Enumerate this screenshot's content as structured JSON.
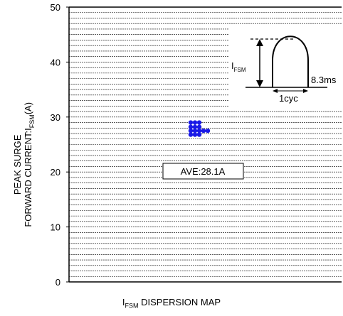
{
  "chart_data": {
    "type": "scatter",
    "ylabel_line1": "PEAK SURGE",
    "ylabel_line2_prefix": "FORWARD CURRENT:I",
    "ylabel_line2_sub": "FSM",
    "ylabel_line2_suffix": "(A)",
    "xcaption_prefix": "I",
    "xcaption_sub": "FSM",
    "xcaption_suffix": " DISPERSION MAP",
    "ylim": [
      0,
      50
    ],
    "yticks": [
      "0",
      "10",
      "20",
      "30",
      "40",
      "50"
    ],
    "hgrid_step": 1,
    "annotation": "AVE:28.1A",
    "marker_color": "#1a1ae6",
    "points": [
      {
        "x": 0,
        "y": 29
      },
      {
        "x": 1,
        "y": 29
      },
      {
        "x": 2,
        "y": 29
      },
      {
        "x": 0,
        "y": 28.2
      },
      {
        "x": 1,
        "y": 28.2
      },
      {
        "x": 2,
        "y": 28.2
      },
      {
        "x": 0,
        "y": 27.5
      },
      {
        "x": 1,
        "y": 27.5
      },
      {
        "x": 2,
        "y": 27.5
      },
      {
        "x": 3,
        "y": 27.5
      },
      {
        "x": 4,
        "y": 27.5
      },
      {
        "x": 0,
        "y": 26.8
      },
      {
        "x": 1,
        "y": 26.8
      },
      {
        "x": 2,
        "y": 26.8
      }
    ],
    "inset": {
      "ifsm_prefix": "I",
      "ifsm_sub": "FSM",
      "period": "8.3ms",
      "cycle": "1cyc"
    }
  }
}
